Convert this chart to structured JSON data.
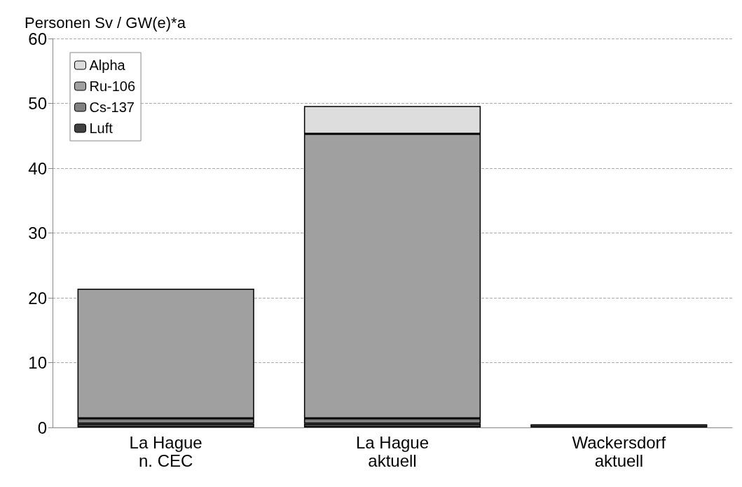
{
  "chart_data": {
    "type": "bar",
    "ylabel": "Personen Sv / GW(e)*a",
    "categories": [
      "La Hague\nn. CEC",
      "La Hague\naktuell",
      "Wackersdorf\naktuell"
    ],
    "stacked": true,
    "series": [
      {
        "name": "Luft",
        "color": "#404040",
        "values": [
          0.6,
          0.6,
          0.5
        ]
      },
      {
        "name": "Cs-137",
        "color": "#808080",
        "values": [
          0.8,
          0.8,
          null
        ]
      },
      {
        "name": "Ru-106",
        "color": "#a0a0a0",
        "values": [
          20.0,
          43.9,
          null
        ]
      },
      {
        "name": "Alpha",
        "color": "#dddddd",
        "values": [
          null,
          4.3,
          null
        ]
      }
    ],
    "ylim": [
      0,
      60
    ],
    "yticks": [
      0,
      10,
      20,
      30,
      40,
      50,
      60
    ],
    "grid": "y",
    "legend": "top left"
  }
}
